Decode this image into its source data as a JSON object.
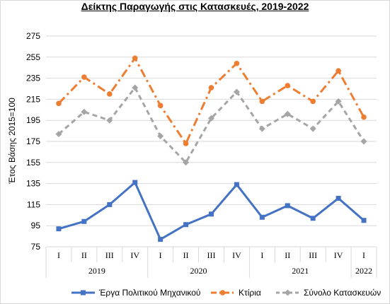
{
  "chart_data": {
    "type": "line",
    "title": "Δείκτης Παραγωγής στις Κατασκευές, 2019-2022",
    "ylabel": "Έτος Βάσης 2015=100",
    "xlabel": "",
    "ylim": [
      75,
      275
    ],
    "yticks": [
      75,
      95,
      115,
      135,
      155,
      175,
      195,
      215,
      235,
      255,
      275
    ],
    "categories": [
      "I",
      "II",
      "III",
      "IV",
      "I",
      "II",
      "III",
      "IV",
      "I",
      "II",
      "III",
      "IV",
      "I"
    ],
    "groups": [
      {
        "label": "2019",
        "start": 0,
        "end": 3
      },
      {
        "label": "2020",
        "start": 4,
        "end": 7
      },
      {
        "label": "2021",
        "start": 8,
        "end": 11
      },
      {
        "label": "2022",
        "start": 12,
        "end": 12
      }
    ],
    "grid": true,
    "legend_position": "bottom",
    "series": [
      {
        "name": "Έργα Πολιτικού Μηχανικού",
        "color": "#4472c4",
        "style": "solid",
        "marker": "square",
        "values": [
          92,
          99,
          115,
          136,
          82,
          96,
          106,
          134,
          103,
          114,
          102,
          121,
          100
        ]
      },
      {
        "name": "Κτίρια",
        "color": "#ed7d31",
        "style": "dashdot",
        "marker": "circle",
        "values": [
          211,
          236,
          220,
          254,
          209,
          173,
          226,
          249,
          213,
          228,
          213,
          242,
          198
        ]
      },
      {
        "name": "Σύνολο Κατασκευών",
        "color": "#a5a5a5",
        "style": "dash",
        "marker": "diamond",
        "values": [
          182,
          203,
          195,
          226,
          180,
          155,
          197,
          222,
          187,
          201,
          187,
          213,
          175
        ]
      }
    ]
  }
}
